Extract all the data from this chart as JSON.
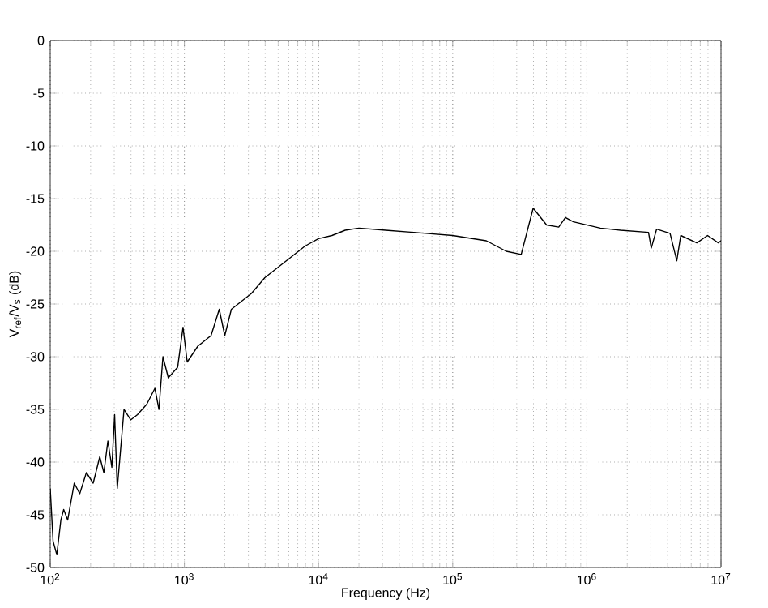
{
  "chart_data": {
    "type": "line",
    "xlabel": "Frequency (Hz)",
    "ylabel": "V$_{ref}$/V$_{s}$ (dB)",
    "log": "x",
    "grid": true,
    "marker": "none",
    "line_style": "solid",
    "xlim": [
      100,
      10000000
    ],
    "ylim": [
      -50,
      0
    ],
    "xticks": [
      {
        "value": 100,
        "label": "10$^{2}$"
      },
      {
        "value": 1000,
        "label": "10$^{3}$"
      },
      {
        "value": 10000,
        "label": "10$^{4}$"
      },
      {
        "value": 100000,
        "label": "10$^{5}$"
      },
      {
        "value": 1000000,
        "label": "10$^{6}$"
      },
      {
        "value": 10000000,
        "label": "10$^{7}$"
      }
    ],
    "yticks": [
      -50,
      -45,
      -40,
      -35,
      -30,
      -25,
      -20,
      -15,
      -10,
      -5,
      0
    ],
    "series": [
      {
        "color": "#000000",
        "x": [
          100,
          105,
          112,
          120,
          126,
          135,
          151,
          166,
          186,
          209,
          234,
          251,
          269,
          288,
          302,
          316,
          355,
          398,
          447,
          525,
          603,
          646,
          692,
          759,
          891,
          977,
          1050,
          1260,
          1580,
          1820,
          2000,
          2240,
          3160,
          3980,
          5010,
          6310,
          7940,
          10000,
          12600,
          15800,
          20000,
          31600,
          63100,
          100000,
          178000,
          251000,
          324000,
          398000,
          501000,
          617000,
          692000,
          794000,
          1260000,
          1780000,
          2880000,
          3020000,
          3310000,
          4170000,
          4680000,
          5010000,
          6610000,
          7940000,
          9550000,
          10000000
        ],
        "values": [
          -42.5,
          -47.5,
          -48.8,
          -45.5,
          -44.5,
          -45.5,
          -42,
          -43,
          -41,
          -42,
          -39.5,
          -41,
          -38,
          -40.5,
          -35.5,
          -42.5,
          -35,
          -36,
          -35.5,
          -34.5,
          -33,
          -35,
          -30,
          -32,
          -31,
          -27.2,
          -30.5,
          -29,
          -28,
          -25.5,
          -28,
          -25.5,
          -24,
          -22.5,
          -21.5,
          -20.5,
          -19.5,
          -18.8,
          -18.5,
          -18,
          -17.8,
          -18,
          -18.3,
          -18.5,
          -19,
          -20,
          -20.3,
          -15.9,
          -17.5,
          -17.7,
          -16.8,
          -17.2,
          -17.8,
          -18,
          -18.2,
          -19.7,
          -17.9,
          -18.3,
          -20.9,
          -18.5,
          -19.2,
          -18.5,
          -19.2,
          -19
        ]
      }
    ]
  }
}
